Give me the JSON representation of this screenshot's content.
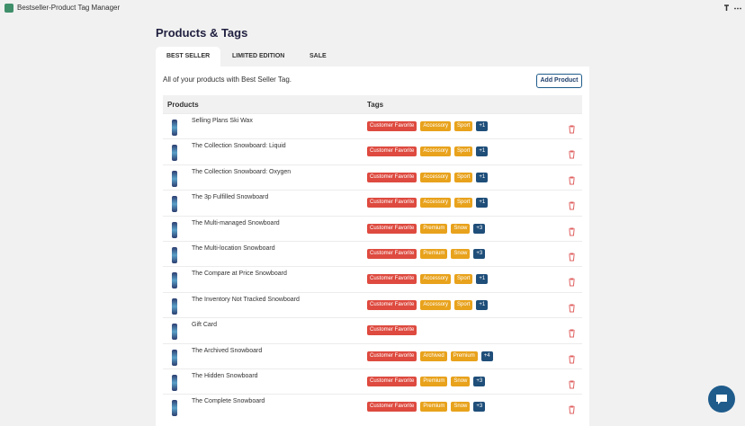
{
  "app": {
    "title": "Bestseller-Product Tag Manager"
  },
  "page": {
    "title": "Products & Tags",
    "tabs": [
      "BEST SELLER",
      "LIMITED EDITION",
      "SALE"
    ],
    "description": "All of your products with Best Seller Tag.",
    "button": "Add Product"
  },
  "table": {
    "headers": [
      "Products",
      "Tags"
    ],
    "rows": [
      {
        "name": "Selling Plans Ski Wax",
        "tags": [
          "Customer Favorite",
          "Accessory",
          "Sport"
        ],
        "more": "+1"
      },
      {
        "name": "The Collection Snowboard: Liquid",
        "tags": [
          "Customer Favorite",
          "Accessory",
          "Sport"
        ],
        "more": "+1"
      },
      {
        "name": "The Collection Snowboard: Oxygen",
        "tags": [
          "Customer Favorite",
          "Accessory",
          "Sport"
        ],
        "more": "+1"
      },
      {
        "name": "The 3p Fulfilled Snowboard",
        "tags": [
          "Customer Favorite",
          "Accessory",
          "Sport"
        ],
        "more": "+1"
      },
      {
        "name": "The Multi-managed Snowboard",
        "tags": [
          "Customer Favorite",
          "Premium",
          "Snow"
        ],
        "more": "+3"
      },
      {
        "name": "The Multi-location Snowboard",
        "tags": [
          "Customer Favorite",
          "Premium",
          "Snow"
        ],
        "more": "+3"
      },
      {
        "name": "The Compare at Price Snowboard",
        "tags": [
          "Customer Favorite",
          "Accessory",
          "Sport"
        ],
        "more": "+1"
      },
      {
        "name": "The Inventory Not Tracked Snowboard",
        "tags": [
          "Customer Favorite",
          "Accessory",
          "Sport"
        ],
        "more": "+1"
      },
      {
        "name": "Gift Card",
        "tags": [
          "Customer Favorite"
        ]
      },
      {
        "name": "The Archived Snowboard",
        "tags": [
          "Customer Favorite",
          "Archived",
          "Premium"
        ],
        "more": "+4"
      },
      {
        "name": "The Hidden Snowboard",
        "tags": [
          "Customer Favorite",
          "Premium",
          "Snow"
        ],
        "more": "+3"
      },
      {
        "name": "The Complete Snowboard",
        "tags": [
          "Customer Favorite",
          "Premium",
          "Snow"
        ],
        "more": "+3"
      }
    ]
  }
}
